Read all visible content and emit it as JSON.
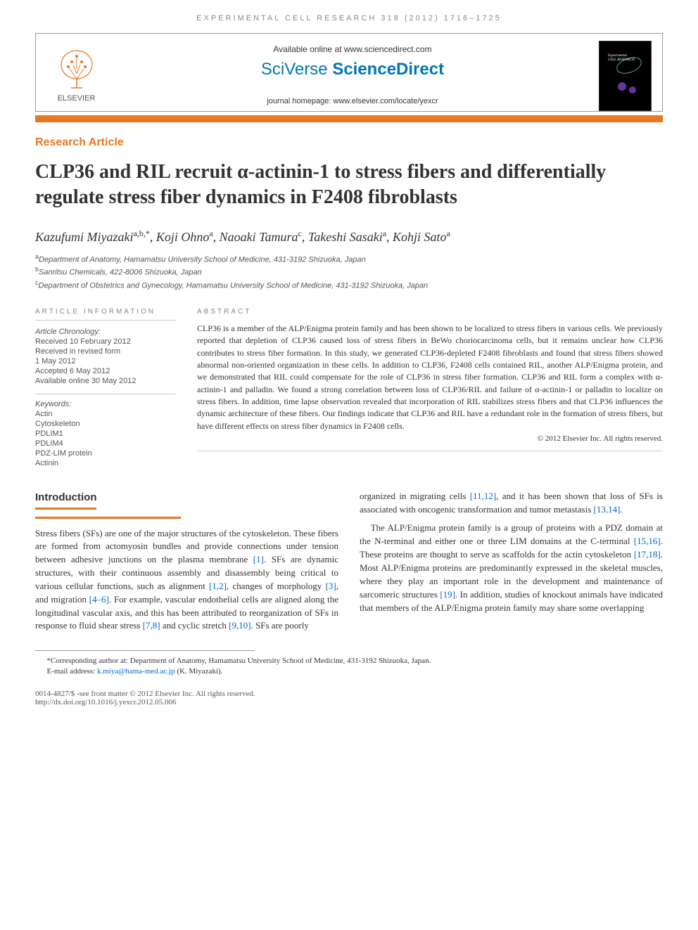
{
  "running_head": "EXPERIMENTAL CELL RESEARCH 318 (2012) 1716–1725",
  "header": {
    "available_text": "Available online at www.sciencedirect.com",
    "brand_light": "SciVerse ",
    "brand_bold": "ScienceDirect",
    "journal_home": "journal homepage: www.elsevier.com/locate/yexcr",
    "publisher": "ELSEVIER"
  },
  "article_type": "Research Article",
  "title": "CLP36 and RIL recruit α-actinin-1 to stress fibers and differentially regulate stress fiber dynamics in F2408 fibroblasts",
  "authors_html": "Kazufumi Miyazaki<sup>a,b,</sup>*, Koji Ohno<sup>a</sup>, Naoaki Tamura<sup>c</sup>, Takeshi Sasaki<sup>a</sup>, Kohji Sato<sup>a</sup>",
  "authors": [
    {
      "name": "Kazufumi Miyazaki",
      "aff": "a,b,",
      "corr": "*"
    },
    {
      "name": "Koji Ohno",
      "aff": "a"
    },
    {
      "name": "Naoaki Tamura",
      "aff": "c"
    },
    {
      "name": "Takeshi Sasaki",
      "aff": "a"
    },
    {
      "name": "Kohji Sato",
      "aff": "a"
    }
  ],
  "affiliations": [
    {
      "sup": "a",
      "text": "Department of Anatomy, Hamamatsu University School of Medicine, 431-3192 Shizuoka, Japan"
    },
    {
      "sup": "b",
      "text": "Sanritsu Chemicals, 422-8006 Shizuoka, Japan"
    },
    {
      "sup": "c",
      "text": "Department of Obstetrics and Gynecology, Hamamatsu University School of Medicine, 431-3192 Shizuoka, Japan"
    }
  ],
  "info": {
    "header": "ARTICLE INFORMATION",
    "chrono_label": "Article Chronology:",
    "chrono": [
      "Received 10 February 2012",
      "Received in revised form",
      "1 May 2012",
      "Accepted 6 May 2012",
      "Available online 30 May 2012"
    ],
    "keywords_label": "Keywords:",
    "keywords": [
      "Actin",
      "Cytoskeleton",
      "PDLIM1",
      "PDLIM4",
      "PDZ-LIM protein",
      "Actinin"
    ]
  },
  "abstract": {
    "header": "ABSTRACT",
    "text": "CLP36 is a member of the ALP/Enigma protein family and has been shown to be localized to stress fibers in various cells. We previously reported that depletion of CLP36 caused loss of stress fibers in BeWo choriocarcinoma cells, but it remains unclear how CLP36 contributes to stress fiber formation. In this study, we generated CLP36-depleted F2408 fibroblasts and found that stress fibers showed abnormal non-oriented organization in these cells. In addition to CLP36, F2408 cells contained RIL, another ALP/Enigma protein, and we demonstrated that RIL could compensate for the role of CLP36 in stress fiber formation. CLP36 and RIL form a complex with α-actinin-1 and palladin. We found a strong correlation between loss of CLP36/RIL and failure of α-actinin-1 or palladin to localize on stress fibers. In addition, time lapse observation revealed that incorporation of RIL stabilizes stress fibers and that CLP36 influences the dynamic architecture of these fibers. Our findings indicate that CLP36 and RIL have a redundant role in the formation of stress fibers, but have different effects on stress fiber dynamics in F2408 cells.",
    "copyright": "© 2012 Elsevier Inc. All rights reserved."
  },
  "intro": {
    "header": "Introduction",
    "col1": "Stress fibers (SFs) are one of the major structures of the cytoskeleton. These fibers are formed from actomyosin bundles and provide connections under tension between adhesive junctions on the plasma membrane [1]. SFs are dynamic structures, with their continuous assembly and disassembly being critical to various cellular functions, such as alignment [1,2], changes of morphology [3], and migration [4–6]. For example, vascular endothelial cells are aligned along the longitudinal vascular axis, and this has been attributed to reorganization of SFs in response to fluid shear stress [7,8] and cyclic stretch [9,10]. SFs are poorly",
    "col2a": "organized in migrating cells [11,12], and it has been shown that loss of SFs is associated with oncogenic transformation and tumor metastasis [13,14].",
    "col2b": "The ALP/Enigma protein family is a group of proteins with a PDZ domain at the N-terminal and either one or three LIM domains at the C-terminal [15,16]. These proteins are thought to serve as scaffolds for the actin cytoskeleton [17,18]. Most ALP/Enigma proteins are predominantly expressed in the skeletal muscles, where they play an important role in the development and maintenance of sarcomeric structures [19]. In addition, studies of knockout animals have indicated that members of the ALP/Enigma protein family may share some overlapping"
  },
  "footer": {
    "corr": "*Corresponding author at: Department of Anatomy, Hamamatsu University School of Medicine, 431-3192 Shizuoka, Japan.",
    "email_label": "E-mail address: ",
    "email": "k.miya@hama-med.ac.jp",
    "email_suffix": " (K. Miyazaki).",
    "issn": "0014-4827/$ -see front matter © 2012 Elsevier Inc. All rights reserved.",
    "doi": "http://dx.doi.org/10.1016/j.yexcr.2012.05.006"
  },
  "colors": {
    "accent": "#e87722",
    "brand": "#0077b3",
    "link": "#0066cc"
  }
}
